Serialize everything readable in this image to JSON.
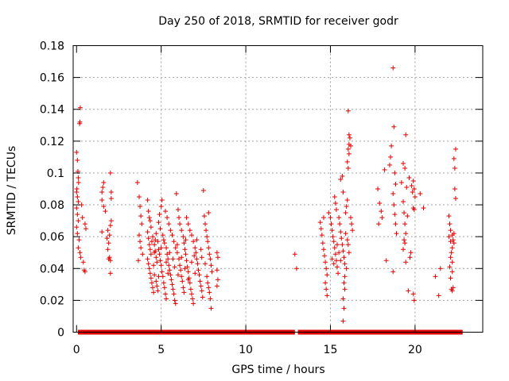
{
  "chart_data": {
    "type": "scatter",
    "title": "Day 250 of 2018, SRMTID for receiver godr",
    "xlabel": "GPS time / hours",
    "ylabel": "SRMTID / TECUs",
    "xlim": [
      -0.2,
      24
    ],
    "ylim": [
      0,
      0.18
    ],
    "grid": true,
    "marker": "+",
    "color": "#e00000",
    "x_ticks": [
      0,
      5,
      10,
      15,
      20
    ],
    "x_tick_labels": [
      "0",
      "5",
      "10",
      "15",
      "20"
    ],
    "y_ticks": [
      0,
      0.02,
      0.04,
      0.06,
      0.08,
      0.1,
      0.12,
      0.14,
      0.16,
      0.18
    ],
    "y_tick_labels": [
      "0",
      "0.02",
      "0.04",
      "0.06",
      "0.08",
      "0.1",
      "0.12",
      "0.14",
      "0.16",
      "0.18"
    ],
    "points": [
      [
        0.0,
        0.113
      ],
      [
        0.05,
        0.108
      ],
      [
        0.08,
        0.101
      ],
      [
        0.1,
        0.097
      ],
      [
        0.12,
        0.094
      ],
      [
        0.02,
        0.09
      ],
      [
        0.0,
        0.088
      ],
      [
        0.05,
        0.085
      ],
      [
        0.1,
        0.082
      ],
      [
        0.0,
        0.078
      ],
      [
        0.05,
        0.074
      ],
      [
        0.1,
        0.07
      ],
      [
        0.0,
        0.066
      ],
      [
        0.05,
        0.062
      ],
      [
        0.15,
        0.058
      ],
      [
        0.1,
        0.053
      ],
      [
        0.2,
        0.05
      ],
      [
        0.25,
        0.047
      ],
      [
        0.18,
        0.131
      ],
      [
        0.2,
        0.132
      ],
      [
        0.22,
        0.141
      ],
      [
        0.3,
        0.08
      ],
      [
        0.35,
        0.072
      ],
      [
        0.4,
        0.044
      ],
      [
        0.45,
        0.039
      ],
      [
        0.5,
        0.038
      ],
      [
        0.55,
        0.065
      ],
      [
        0.5,
        0.068
      ],
      [
        1.5,
        0.088
      ],
      [
        1.55,
        0.091
      ],
      [
        1.6,
        0.094
      ],
      [
        1.5,
        0.083
      ],
      [
        1.6,
        0.079
      ],
      [
        1.7,
        0.076
      ],
      [
        1.5,
        0.063
      ],
      [
        1.8,
        0.059
      ],
      [
        1.9,
        0.056
      ],
      [
        1.85,
        0.052
      ],
      [
        1.95,
        0.047
      ],
      [
        2.0,
        0.045
      ],
      [
        1.9,
        0.046
      ],
      [
        2.0,
        0.037
      ],
      [
        1.95,
        0.061
      ],
      [
        2.0,
        0.067
      ],
      [
        2.05,
        0.07
      ],
      [
        2.05,
        0.088
      ],
      [
        2.0,
        0.1
      ],
      [
        2.05,
        0.084
      ],
      [
        1.85,
        0.064
      ],
      [
        3.6,
        0.094
      ],
      [
        3.7,
        0.085
      ],
      [
        3.75,
        0.079
      ],
      [
        3.8,
        0.073
      ],
      [
        3.85,
        0.068
      ],
      [
        3.7,
        0.061
      ],
      [
        3.75,
        0.057
      ],
      [
        3.8,
        0.053
      ],
      [
        3.9,
        0.049
      ],
      [
        3.65,
        0.045
      ],
      [
        4.2,
        0.083
      ],
      [
        4.25,
        0.076
      ],
      [
        4.3,
        0.072
      ],
      [
        4.35,
        0.07
      ],
      [
        4.4,
        0.066
      ],
      [
        4.2,
        0.063
      ],
      [
        4.25,
        0.059
      ],
      [
        4.3,
        0.055
      ],
      [
        4.35,
        0.052
      ],
      [
        4.4,
        0.049
      ],
      [
        4.2,
        0.046
      ],
      [
        4.25,
        0.043
      ],
      [
        4.3,
        0.04
      ],
      [
        4.35,
        0.037
      ],
      [
        4.4,
        0.034
      ],
      [
        4.45,
        0.031
      ],
      [
        4.5,
        0.028
      ],
      [
        4.55,
        0.025
      ],
      [
        4.6,
        0.055
      ],
      [
        4.5,
        0.06
      ],
      [
        4.65,
        0.051
      ],
      [
        4.7,
        0.047
      ],
      [
        4.55,
        0.042
      ],
      [
        4.6,
        0.036
      ],
      [
        4.7,
        0.032
      ],
      [
        4.75,
        0.029
      ],
      [
        4.8,
        0.026
      ],
      [
        4.65,
        0.058
      ],
      [
        4.7,
        0.062
      ],
      [
        4.8,
        0.057
      ],
      [
        4.85,
        0.052
      ],
      [
        4.9,
        0.049
      ],
      [
        4.95,
        0.045
      ],
      [
        5.0,
        0.042
      ],
      [
        5.05,
        0.038
      ],
      [
        5.1,
        0.035
      ],
      [
        5.15,
        0.031
      ],
      [
        5.2,
        0.028
      ],
      [
        5.25,
        0.024
      ],
      [
        5.3,
        0.021
      ],
      [
        4.9,
        0.074
      ],
      [
        5.0,
        0.079
      ],
      [
        5.05,
        0.083
      ],
      [
        4.85,
        0.069
      ],
      [
        4.95,
        0.065
      ],
      [
        5.1,
        0.061
      ],
      [
        5.2,
        0.056
      ],
      [
        5.3,
        0.053
      ],
      [
        5.35,
        0.049
      ],
      [
        5.4,
        0.046
      ],
      [
        5.45,
        0.042
      ],
      [
        5.5,
        0.039
      ],
      [
        5.55,
        0.036
      ],
      [
        5.6,
        0.033
      ],
      [
        5.65,
        0.03
      ],
      [
        5.7,
        0.027
      ],
      [
        5.75,
        0.024
      ],
      [
        5.8,
        0.02
      ],
      [
        5.85,
        0.018
      ],
      [
        5.25,
        0.076
      ],
      [
        5.35,
        0.072
      ],
      [
        5.45,
        0.068
      ],
      [
        5.55,
        0.064
      ],
      [
        5.65,
        0.061
      ],
      [
        5.75,
        0.057
      ],
      [
        5.85,
        0.053
      ],
      [
        5.95,
        0.05
      ],
      [
        6.05,
        0.046
      ],
      [
        6.1,
        0.042
      ],
      [
        6.15,
        0.039
      ],
      [
        6.2,
        0.035
      ],
      [
        6.25,
        0.032
      ],
      [
        6.3,
        0.028
      ],
      [
        6.35,
        0.025
      ],
      [
        5.9,
        0.087
      ],
      [
        6.0,
        0.077
      ],
      [
        6.05,
        0.072
      ],
      [
        6.1,
        0.068
      ],
      [
        6.2,
        0.064
      ],
      [
        6.3,
        0.06
      ],
      [
        6.35,
        0.056
      ],
      [
        6.4,
        0.052
      ],
      [
        6.45,
        0.049
      ],
      [
        6.5,
        0.045
      ],
      [
        6.55,
        0.041
      ],
      [
        6.6,
        0.038
      ],
      [
        6.65,
        0.034
      ],
      [
        6.7,
        0.031
      ],
      [
        6.75,
        0.027
      ],
      [
        6.8,
        0.024
      ],
      [
        6.85,
        0.021
      ],
      [
        6.9,
        0.018
      ],
      [
        6.5,
        0.072
      ],
      [
        6.6,
        0.068
      ],
      [
        6.7,
        0.064
      ],
      [
        6.8,
        0.061
      ],
      [
        6.9,
        0.057
      ],
      [
        7.0,
        0.053
      ],
      [
        7.05,
        0.05
      ],
      [
        7.1,
        0.046
      ],
      [
        7.15,
        0.043
      ],
      [
        7.2,
        0.039
      ],
      [
        7.25,
        0.036
      ],
      [
        7.3,
        0.032
      ],
      [
        7.35,
        0.029
      ],
      [
        7.4,
        0.026
      ],
      [
        7.45,
        0.022
      ],
      [
        7.5,
        0.089
      ],
      [
        7.55,
        0.073
      ],
      [
        7.6,
        0.068
      ],
      [
        7.65,
        0.064
      ],
      [
        7.7,
        0.06
      ],
      [
        7.75,
        0.057
      ],
      [
        7.8,
        0.053
      ],
      [
        7.85,
        0.049
      ],
      [
        7.9,
        0.046
      ],
      [
        7.95,
        0.042
      ],
      [
        8.0,
        0.038
      ],
      [
        7.7,
        0.035
      ],
      [
        7.75,
        0.031
      ],
      [
        7.8,
        0.028
      ],
      [
        7.85,
        0.025
      ],
      [
        7.9,
        0.021
      ],
      [
        7.95,
        0.015
      ],
      [
        7.8,
        0.075
      ],
      [
        8.3,
        0.05
      ],
      [
        8.35,
        0.047
      ],
      [
        8.3,
        0.039
      ],
      [
        8.35,
        0.033
      ],
      [
        8.3,
        0.029
      ],
      [
        4.45,
        0.057
      ],
      [
        4.75,
        0.044
      ],
      [
        5.15,
        0.058
      ],
      [
        5.5,
        0.05
      ],
      [
        5.7,
        0.046
      ],
      [
        6.0,
        0.036
      ],
      [
        6.4,
        0.04
      ],
      [
        6.8,
        0.044
      ],
      [
        7.1,
        0.058
      ],
      [
        7.4,
        0.047
      ],
      [
        4.6,
        0.05
      ],
      [
        5.0,
        0.053
      ],
      [
        5.4,
        0.037
      ],
      [
        5.8,
        0.041
      ],
      [
        6.2,
        0.047
      ],
      [
        6.6,
        0.033
      ],
      [
        7.0,
        0.037
      ],
      [
        7.6,
        0.043
      ],
      [
        4.85,
        0.035
      ],
      [
        5.3,
        0.044
      ],
      [
        5.95,
        0.055
      ],
      [
        6.45,
        0.058
      ],
      [
        6.95,
        0.048
      ],
      [
        7.35,
        0.052
      ],
      [
        12.9,
        0.049
      ],
      [
        13.0,
        0.04
      ],
      [
        14.4,
        0.069
      ],
      [
        14.45,
        0.065
      ],
      [
        14.5,
        0.061
      ],
      [
        14.55,
        0.056
      ],
      [
        14.6,
        0.052
      ],
      [
        14.65,
        0.048
      ],
      [
        14.7,
        0.044
      ],
      [
        14.75,
        0.04
      ],
      [
        14.8,
        0.036
      ],
      [
        14.7,
        0.031
      ],
      [
        14.75,
        0.027
      ],
      [
        14.8,
        0.023
      ],
      [
        14.6,
        0.072
      ],
      [
        14.9,
        0.075
      ],
      [
        15.0,
        0.072
      ],
      [
        15.05,
        0.068
      ],
      [
        15.1,
        0.064
      ],
      [
        15.15,
        0.06
      ],
      [
        15.2,
        0.057
      ],
      [
        15.25,
        0.053
      ],
      [
        15.3,
        0.049
      ],
      [
        15.35,
        0.045
      ],
      [
        15.4,
        0.041
      ],
      [
        15.45,
        0.037
      ],
      [
        15.25,
        0.085
      ],
      [
        15.3,
        0.081
      ],
      [
        15.35,
        0.077
      ],
      [
        15.5,
        0.072
      ],
      [
        15.55,
        0.068
      ],
      [
        15.6,
        0.063
      ],
      [
        15.65,
        0.059
      ],
      [
        15.7,
        0.055
      ],
      [
        15.75,
        0.051
      ],
      [
        15.8,
        0.047
      ],
      [
        15.85,
        0.043
      ],
      [
        15.6,
        0.096
      ],
      [
        15.7,
        0.098
      ],
      [
        15.75,
        0.088
      ],
      [
        15.8,
        0.031
      ],
      [
        15.85,
        0.027
      ],
      [
        15.75,
        0.021
      ],
      [
        15.8,
        0.015
      ],
      [
        15.75,
        0.007
      ],
      [
        15.9,
        0.075
      ],
      [
        15.95,
        0.079
      ],
      [
        16.0,
        0.083
      ],
      [
        16.05,
        0.103
      ],
      [
        16.0,
        0.107
      ],
      [
        16.1,
        0.112
      ],
      [
        16.05,
        0.115
      ],
      [
        16.1,
        0.118
      ],
      [
        16.15,
        0.122
      ],
      [
        16.1,
        0.124
      ],
      [
        16.05,
        0.139
      ],
      [
        16.2,
        0.117
      ],
      [
        16.2,
        0.072
      ],
      [
        16.25,
        0.068
      ],
      [
        16.3,
        0.064
      ],
      [
        16.0,
        0.058
      ],
      [
        16.05,
        0.055
      ],
      [
        16.1,
        0.05
      ],
      [
        15.9,
        0.062
      ],
      [
        15.95,
        0.04
      ],
      [
        15.85,
        0.035
      ],
      [
        15.1,
        0.046
      ],
      [
        15.2,
        0.043
      ],
      [
        15.4,
        0.055
      ],
      [
        15.5,
        0.05
      ],
      [
        15.6,
        0.045
      ],
      [
        17.8,
        0.09
      ],
      [
        17.9,
        0.081
      ],
      [
        18.0,
        0.076
      ],
      [
        18.05,
        0.072
      ],
      [
        17.85,
        0.068
      ],
      [
        18.2,
        0.102
      ],
      [
        18.3,
        0.045
      ],
      [
        18.5,
        0.105
      ],
      [
        18.55,
        0.11
      ],
      [
        18.6,
        0.117
      ],
      [
        18.7,
        0.166
      ],
      [
        18.75,
        0.129
      ],
      [
        18.8,
        0.1
      ],
      [
        18.85,
        0.093
      ],
      [
        18.7,
        0.087
      ],
      [
        18.75,
        0.08
      ],
      [
        18.8,
        0.074
      ],
      [
        18.85,
        0.068
      ],
      [
        18.9,
        0.062
      ],
      [
        18.7,
        0.038
      ],
      [
        19.2,
        0.094
      ],
      [
        19.3,
        0.106
      ],
      [
        19.4,
        0.103
      ],
      [
        19.45,
        0.124
      ],
      [
        19.5,
        0.091
      ],
      [
        19.3,
        0.082
      ],
      [
        19.35,
        0.075
      ],
      [
        19.4,
        0.068
      ],
      [
        19.45,
        0.062
      ],
      [
        19.35,
        0.058
      ],
      [
        19.4,
        0.056
      ],
      [
        19.3,
        0.052
      ],
      [
        19.45,
        0.044
      ],
      [
        19.55,
        0.073
      ],
      [
        19.6,
        0.026
      ],
      [
        19.7,
        0.047
      ],
      [
        19.75,
        0.05
      ],
      [
        19.65,
        0.097
      ],
      [
        19.8,
        0.092
      ],
      [
        19.85,
        0.088
      ],
      [
        19.9,
        0.095
      ],
      [
        19.95,
        0.09
      ],
      [
        20.0,
        0.085
      ],
      [
        19.9,
        0.078
      ],
      [
        19.95,
        0.077
      ],
      [
        19.9,
        0.024
      ],
      [
        19.95,
        0.02
      ],
      [
        20.3,
        0.087
      ],
      [
        20.5,
        0.078
      ],
      [
        21.2,
        0.035
      ],
      [
        21.4,
        0.023
      ],
      [
        21.5,
        0.04
      ],
      [
        22.0,
        0.073
      ],
      [
        22.05,
        0.068
      ],
      [
        22.1,
        0.064
      ],
      [
        22.0,
        0.06
      ],
      [
        22.1,
        0.057
      ],
      [
        22.2,
        0.053
      ],
      [
        22.15,
        0.05
      ],
      [
        22.1,
        0.047
      ],
      [
        22.2,
        0.044
      ],
      [
        22.05,
        0.041
      ],
      [
        22.2,
        0.038
      ],
      [
        22.1,
        0.034
      ],
      [
        22.15,
        0.027
      ],
      [
        22.2,
        0.026
      ],
      [
        22.25,
        0.028
      ],
      [
        22.2,
        0.061
      ],
      [
        22.25,
        0.058
      ],
      [
        22.3,
        0.062
      ],
      [
        22.35,
        0.103
      ],
      [
        22.3,
        0.109
      ],
      [
        22.4,
        0.115
      ],
      [
        22.35,
        0.09
      ],
      [
        22.4,
        0.084
      ],
      [
        22.3,
        0.056
      ]
    ],
    "baseline_ranges": [
      [
        0.1,
        8.2
      ],
      [
        8.2,
        12.9
      ],
      [
        13.1,
        22.8
      ]
    ]
  }
}
